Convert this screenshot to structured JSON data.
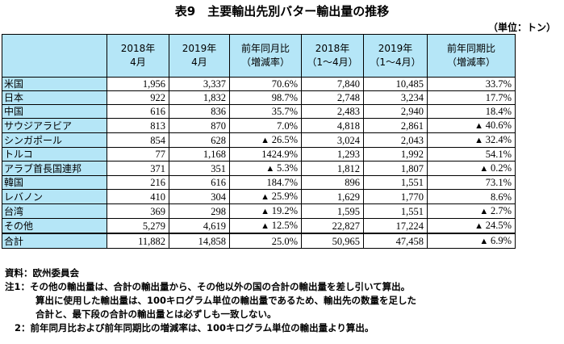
{
  "title": "表9　主要輸出先別バター輸出量の推移",
  "unit": "（単位：トン）",
  "headers": {
    "col1_year": "2018年",
    "col1_period": "4月",
    "col2_year": "2019年",
    "col2_period": "4月",
    "col3_label": "前年同月比",
    "col3_sub": "（増減率）",
    "col4_year": "2018年",
    "col4_period": "（1～4月）",
    "col5_year": "2019年",
    "col5_period": "（1～4月）",
    "col6_label": "前年同期比",
    "col6_sub": "（増減率）"
  },
  "rows": [
    {
      "country": "米国",
      "m2018": "1,956",
      "m2019": "3,337",
      "mom": "70.6%",
      "mom_neg": false,
      "c2018": "7,840",
      "c2019": "10,485",
      "yoy": "33.7%",
      "yoy_neg": false
    },
    {
      "country": "日本",
      "m2018": "922",
      "m2019": "1,832",
      "mom": "98.7%",
      "mom_neg": false,
      "c2018": "2,748",
      "c2019": "3,234",
      "yoy": "17.7%",
      "yoy_neg": false
    },
    {
      "country": "中国",
      "m2018": "616",
      "m2019": "836",
      "mom": "35.7%",
      "mom_neg": false,
      "c2018": "2,483",
      "c2019": "2,940",
      "yoy": "18.4%",
      "yoy_neg": false
    },
    {
      "country": "サウジアラビア",
      "m2018": "813",
      "m2019": "870",
      "mom": "7.0%",
      "mom_neg": false,
      "c2018": "4,818",
      "c2019": "2,861",
      "yoy": "40.6%",
      "yoy_neg": true
    },
    {
      "country": "シンガポール",
      "m2018": "854",
      "m2019": "628",
      "mom": "26.5%",
      "mom_neg": true,
      "c2018": "3,024",
      "c2019": "2,043",
      "yoy": "32.4%",
      "yoy_neg": true
    },
    {
      "country": "トルコ",
      "m2018": "77",
      "m2019": "1,168",
      "mom": "1424.9%",
      "mom_neg": false,
      "c2018": "1,293",
      "c2019": "1,992",
      "yoy": "54.1%",
      "yoy_neg": false
    },
    {
      "country": "アラブ首長国連邦",
      "m2018": "371",
      "m2019": "351",
      "mom": "5.3%",
      "mom_neg": true,
      "c2018": "1,812",
      "c2019": "1,807",
      "yoy": "0.2%",
      "yoy_neg": true
    },
    {
      "country": "韓国",
      "m2018": "216",
      "m2019": "616",
      "mom": "184.7%",
      "mom_neg": false,
      "c2018": "896",
      "c2019": "1,551",
      "yoy": "73.1%",
      "yoy_neg": false
    },
    {
      "country": "レバノン",
      "m2018": "410",
      "m2019": "304",
      "mom": "25.9%",
      "mom_neg": true,
      "c2018": "1,629",
      "c2019": "1,770",
      "yoy": "8.6%",
      "yoy_neg": false
    },
    {
      "country": "台湾",
      "m2018": "369",
      "m2019": "298",
      "mom": "19.2%",
      "mom_neg": true,
      "c2018": "1,595",
      "c2019": "1,551",
      "yoy": "2.7%",
      "yoy_neg": true
    },
    {
      "country": "その他",
      "m2018": "5,279",
      "m2019": "4,619",
      "mom": "12.5%",
      "mom_neg": true,
      "c2018": "22,827",
      "c2019": "17,224",
      "yoy": "24.5%",
      "yoy_neg": true
    },
    {
      "country": "合計",
      "m2018": "11,882",
      "m2019": "14,858",
      "mom": "25.0%",
      "mom_neg": false,
      "c2018": "50,965",
      "c2019": "47,458",
      "yoy": "6.9%",
      "yoy_neg": true
    }
  ],
  "notes": {
    "source": "資料：欧州委員会",
    "note1_a": "注1：その他の輸出量は、合計の輸出量から、その他以外の国の合計の輸出量を差し引いて算出。",
    "note1_b": "算出に使用した輸出量は、100キログラム単位の輸出量であるため、輸出先の数量を足した",
    "note1_c": "合計と、最下段の合計の輸出量とは必ずしも一致しない。",
    "note2": "2：前年同月比および前年同期比の増減率は、100キログラム単位の輸出量より算出。"
  }
}
